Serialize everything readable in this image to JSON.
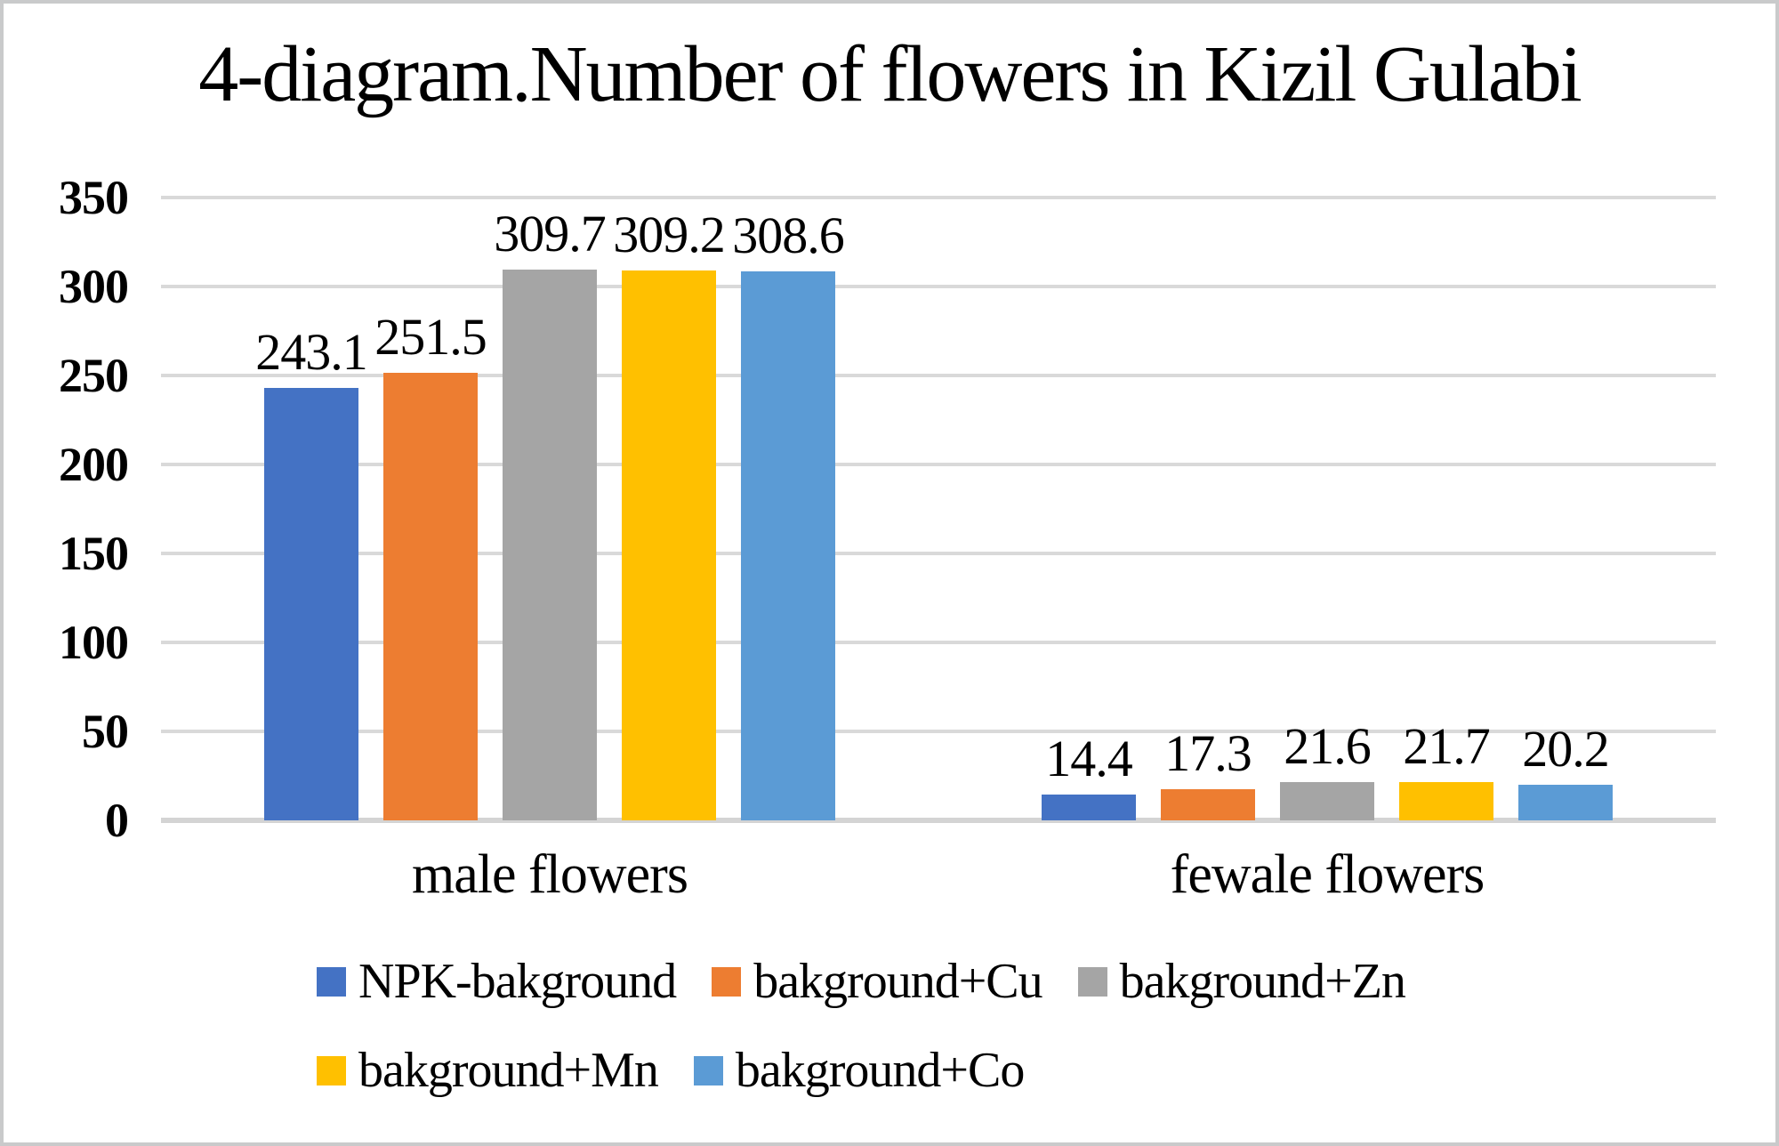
{
  "chart_data": {
    "type": "bar",
    "title": "4-diagram.Number of flowers in Kizil Gulabi",
    "categories": [
      "male flowers",
      "fewale flowers"
    ],
    "series": [
      {
        "name": "NPK-bakground",
        "color": "#4472C4",
        "values": [
          243.1,
          14.4
        ]
      },
      {
        "name": "bakground+Cu",
        "color": "#ED7D31",
        "values": [
          251.5,
          17.3
        ]
      },
      {
        "name": "bakground+Zn",
        "color": "#A5A5A5",
        "values": [
          309.7,
          21.6
        ]
      },
      {
        "name": "bakground+Mn",
        "color": "#FFC000",
        "values": [
          309.2,
          21.7
        ]
      },
      {
        "name": "bakground+Co",
        "color": "#5B9BD5",
        "values": [
          308.6,
          20.2
        ]
      }
    ],
    "ylim": [
      0,
      350
    ],
    "yticks": [
      0,
      50,
      100,
      150,
      200,
      250,
      300,
      350
    ],
    "grid": true,
    "legend_position": "bottom",
    "data_labels_shown": true
  },
  "colors": {
    "background": "#FFFFFF",
    "gridline": "#D9D9D9",
    "axis_line": "#D4D4D4",
    "text": "#000000",
    "frame_border": "#C9CACB"
  }
}
